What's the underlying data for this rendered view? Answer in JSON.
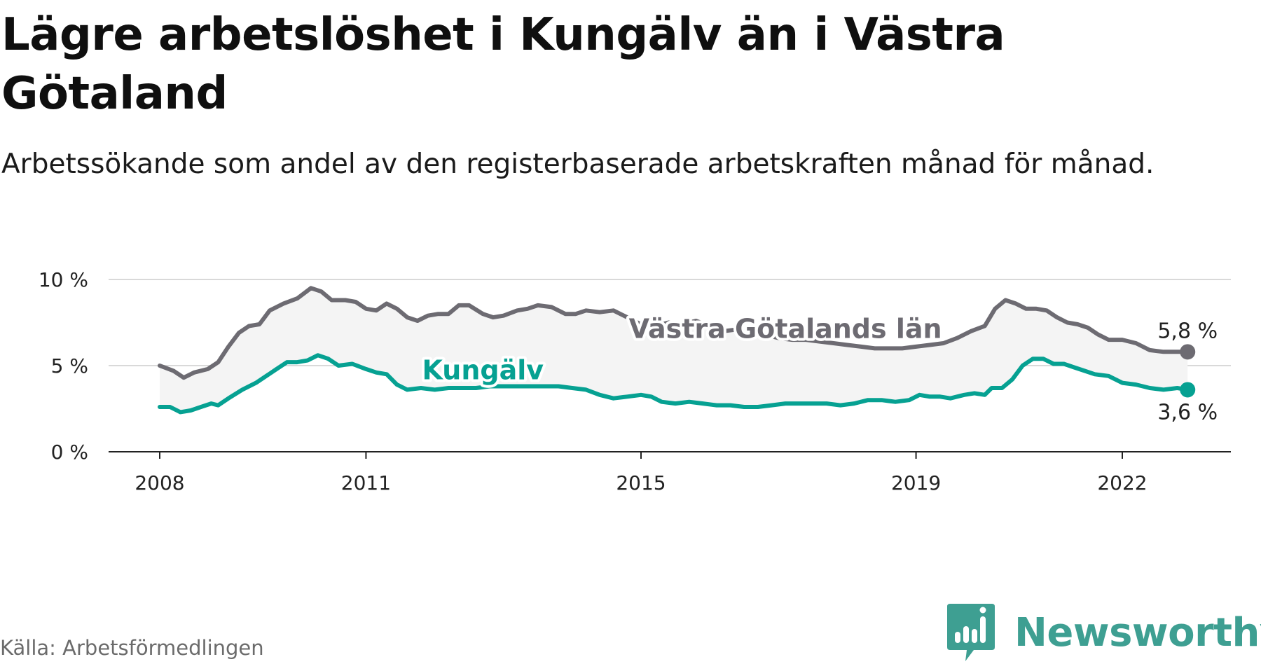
{
  "title": "Lägre arbetslöshet i Kungälv än i Västra Götaland",
  "subtitle": "Arbetssökande som andel av den registerbaserade arbetskraften månad för månad.",
  "source": "Källa: Arbetsförmedlingen",
  "brand": {
    "name": "Newsworthy",
    "icon": "newsworthy-logo-icon",
    "color": "#3e9f92"
  },
  "chart_data": {
    "type": "line",
    "title": "Lägre arbetslöshet i Kungälv än i Västra Götaland",
    "subtitle": "Arbetssökande som andel av den registerbaserade arbetskraften månad för månad.",
    "xlabel": "",
    "ylabel": "",
    "xlim": [
      2008,
      2023.25
    ],
    "ylim": [
      0,
      10
    ],
    "yticks": [
      {
        "value": 0,
        "label": "0 %"
      },
      {
        "value": 5,
        "label": "5 %"
      },
      {
        "value": 10,
        "label": "10 %"
      }
    ],
    "xticks": [
      {
        "value": 2008,
        "label": "2008"
      },
      {
        "value": 2011,
        "label": "2011"
      },
      {
        "value": 2015,
        "label": "2015"
      },
      {
        "value": 2019,
        "label": "2019"
      },
      {
        "value": 2022,
        "label": "2022"
      }
    ],
    "grid": true,
    "shade_between_series": true,
    "series": [
      {
        "name": "Västra Götalands län",
        "color": "#6d6b72",
        "end_label": "5,8 %",
        "points": [
          [
            2008.0,
            5.0
          ],
          [
            2008.2,
            4.7
          ],
          [
            2008.35,
            4.3
          ],
          [
            2008.5,
            4.6
          ],
          [
            2008.7,
            4.8
          ],
          [
            2008.85,
            5.2
          ],
          [
            2009.0,
            6.1
          ],
          [
            2009.15,
            6.9
          ],
          [
            2009.3,
            7.3
          ],
          [
            2009.45,
            7.4
          ],
          [
            2009.6,
            8.2
          ],
          [
            2009.8,
            8.6
          ],
          [
            2010.0,
            8.9
          ],
          [
            2010.2,
            9.5
          ],
          [
            2010.35,
            9.3
          ],
          [
            2010.5,
            8.8
          ],
          [
            2010.7,
            8.8
          ],
          [
            2010.85,
            8.7
          ],
          [
            2011.0,
            8.3
          ],
          [
            2011.15,
            8.2
          ],
          [
            2011.3,
            8.6
          ],
          [
            2011.45,
            8.3
          ],
          [
            2011.6,
            7.8
          ],
          [
            2011.75,
            7.6
          ],
          [
            2011.9,
            7.9
          ],
          [
            2012.05,
            8.0
          ],
          [
            2012.2,
            8.0
          ],
          [
            2012.35,
            8.5
          ],
          [
            2012.5,
            8.5
          ],
          [
            2012.7,
            8.0
          ],
          [
            2012.85,
            7.8
          ],
          [
            2013.0,
            7.9
          ],
          [
            2013.2,
            8.2
          ],
          [
            2013.35,
            8.3
          ],
          [
            2013.5,
            8.5
          ],
          [
            2013.7,
            8.4
          ],
          [
            2013.9,
            8.0
          ],
          [
            2014.05,
            8.0
          ],
          [
            2014.2,
            8.2
          ],
          [
            2014.4,
            8.1
          ],
          [
            2014.6,
            8.2
          ],
          [
            2014.8,
            7.8
          ],
          [
            2015.0,
            7.4
          ],
          [
            2015.2,
            7.3
          ],
          [
            2015.4,
            7.5
          ],
          [
            2015.6,
            7.4
          ],
          [
            2015.8,
            7.6
          ],
          [
            2016.0,
            7.3
          ],
          [
            2016.2,
            7.0
          ],
          [
            2016.4,
            7.1
          ],
          [
            2016.6,
            6.9
          ],
          [
            2016.8,
            6.8
          ],
          [
            2017.0,
            6.6
          ],
          [
            2017.2,
            6.5
          ],
          [
            2017.4,
            6.5
          ],
          [
            2017.6,
            6.4
          ],
          [
            2017.8,
            6.3
          ],
          [
            2018.0,
            6.2
          ],
          [
            2018.2,
            6.1
          ],
          [
            2018.4,
            6.0
          ],
          [
            2018.6,
            6.0
          ],
          [
            2018.8,
            6.0
          ],
          [
            2019.0,
            6.1
          ],
          [
            2019.2,
            6.2
          ],
          [
            2019.4,
            6.3
          ],
          [
            2019.6,
            6.6
          ],
          [
            2019.8,
            7.0
          ],
          [
            2020.0,
            7.3
          ],
          [
            2020.15,
            8.3
          ],
          [
            2020.3,
            8.8
          ],
          [
            2020.45,
            8.6
          ],
          [
            2020.6,
            8.3
          ],
          [
            2020.75,
            8.3
          ],
          [
            2020.9,
            8.2
          ],
          [
            2021.05,
            7.8
          ],
          [
            2021.2,
            7.5
          ],
          [
            2021.35,
            7.4
          ],
          [
            2021.5,
            7.2
          ],
          [
            2021.65,
            6.8
          ],
          [
            2021.8,
            6.5
          ],
          [
            2022.0,
            6.5
          ],
          [
            2022.2,
            6.3
          ],
          [
            2022.4,
            5.9
          ],
          [
            2022.6,
            5.8
          ],
          [
            2022.8,
            5.8
          ],
          [
            2022.95,
            5.8
          ]
        ]
      },
      {
        "name": "Kungälv",
        "color": "#06a192",
        "end_label": "3,6 %",
        "points": [
          [
            2008.0,
            2.6
          ],
          [
            2008.15,
            2.6
          ],
          [
            2008.3,
            2.3
          ],
          [
            2008.45,
            2.4
          ],
          [
            2008.6,
            2.6
          ],
          [
            2008.75,
            2.8
          ],
          [
            2008.85,
            2.7
          ],
          [
            2009.0,
            3.1
          ],
          [
            2009.2,
            3.6
          ],
          [
            2009.4,
            4.0
          ],
          [
            2009.55,
            4.4
          ],
          [
            2009.7,
            4.8
          ],
          [
            2009.85,
            5.2
          ],
          [
            2010.0,
            5.2
          ],
          [
            2010.15,
            5.3
          ],
          [
            2010.3,
            5.6
          ],
          [
            2010.45,
            5.4
          ],
          [
            2010.6,
            5.0
          ],
          [
            2010.8,
            5.1
          ],
          [
            2011.0,
            4.8
          ],
          [
            2011.15,
            4.6
          ],
          [
            2011.3,
            4.5
          ],
          [
            2011.45,
            3.9
          ],
          [
            2011.6,
            3.6
          ],
          [
            2011.8,
            3.7
          ],
          [
            2012.0,
            3.6
          ],
          [
            2012.2,
            3.7
          ],
          [
            2012.4,
            3.7
          ],
          [
            2012.6,
            3.7
          ],
          [
            2012.8,
            3.8
          ],
          [
            2013.0,
            3.8
          ],
          [
            2013.2,
            3.8
          ],
          [
            2013.4,
            3.8
          ],
          [
            2013.6,
            3.8
          ],
          [
            2013.8,
            3.8
          ],
          [
            2014.0,
            3.7
          ],
          [
            2014.2,
            3.6
          ],
          [
            2014.4,
            3.3
          ],
          [
            2014.6,
            3.1
          ],
          [
            2014.8,
            3.2
          ],
          [
            2015.0,
            3.3
          ],
          [
            2015.15,
            3.2
          ],
          [
            2015.3,
            2.9
          ],
          [
            2015.5,
            2.8
          ],
          [
            2015.7,
            2.9
          ],
          [
            2015.9,
            2.8
          ],
          [
            2016.1,
            2.7
          ],
          [
            2016.3,
            2.7
          ],
          [
            2016.5,
            2.6
          ],
          [
            2016.7,
            2.6
          ],
          [
            2016.9,
            2.7
          ],
          [
            2017.1,
            2.8
          ],
          [
            2017.3,
            2.8
          ],
          [
            2017.5,
            2.8
          ],
          [
            2017.7,
            2.8
          ],
          [
            2017.9,
            2.7
          ],
          [
            2018.1,
            2.8
          ],
          [
            2018.3,
            3.0
          ],
          [
            2018.5,
            3.0
          ],
          [
            2018.7,
            2.9
          ],
          [
            2018.9,
            3.0
          ],
          [
            2019.05,
            3.3
          ],
          [
            2019.2,
            3.2
          ],
          [
            2019.35,
            3.2
          ],
          [
            2019.5,
            3.1
          ],
          [
            2019.7,
            3.3
          ],
          [
            2019.85,
            3.4
          ],
          [
            2020.0,
            3.3
          ],
          [
            2020.1,
            3.7
          ],
          [
            2020.25,
            3.7
          ],
          [
            2020.4,
            4.2
          ],
          [
            2020.55,
            5.0
          ],
          [
            2020.7,
            5.4
          ],
          [
            2020.85,
            5.4
          ],
          [
            2021.0,
            5.1
          ],
          [
            2021.15,
            5.1
          ],
          [
            2021.3,
            4.9
          ],
          [
            2021.45,
            4.7
          ],
          [
            2021.6,
            4.5
          ],
          [
            2021.8,
            4.4
          ],
          [
            2022.0,
            4.0
          ],
          [
            2022.2,
            3.9
          ],
          [
            2022.4,
            3.7
          ],
          [
            2022.6,
            3.6
          ],
          [
            2022.8,
            3.7
          ],
          [
            2022.95,
            3.6
          ]
        ]
      }
    ],
    "annotations": [
      {
        "text": "Västra Götalands län",
        "series": "Västra Götalands län",
        "anchor_x": 2017.1,
        "anchor_y": 6.6
      },
      {
        "text": "Kungälv",
        "series": "Kungälv",
        "anchor_x": 2012.7,
        "anchor_y": 4.2
      }
    ]
  }
}
